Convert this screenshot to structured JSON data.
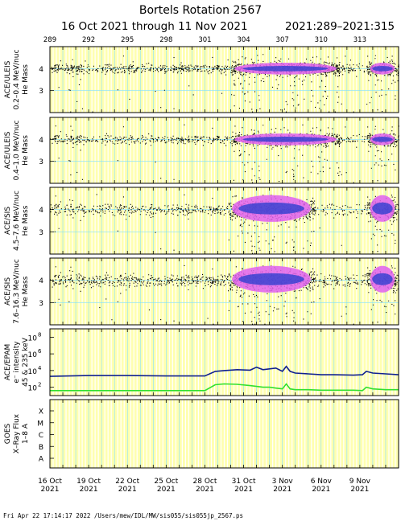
{
  "title": "Bortels Rotation 2567",
  "subtitle": "16 Oct 2021 through 11 Nov 2021",
  "doy_range": "2021:289–2021:315",
  "footer": "Fri Apr 22 17:14:17 2022   /Users/mew/IDL/MW/sis055/sis055jp_2567.ps",
  "colors": {
    "stripe_yellow": "#ffffb0",
    "grid_cyan": "#7fdfff",
    "frame": "#000000",
    "dense_magenta": "#e060f0",
    "dense_blue": "#3040d0",
    "epam_blue": "#102090",
    "epam_green": "#30e030"
  },
  "chart_data": {
    "type": "scatter",
    "x_start_doy": 289,
    "x_end_doy": 316,
    "top_ticks": [
      "289",
      "292",
      "295",
      "298",
      "301",
      "304",
      "307",
      "310",
      "313"
    ],
    "bottom_ticks": [
      {
        "day": "16 Oct",
        "year": "2021"
      },
      {
        "day": "19 Oct",
        "year": "2021"
      },
      {
        "day": "22 Oct",
        "year": "2021"
      },
      {
        "day": "25 Oct",
        "year": "2021"
      },
      {
        "day": "28 Oct",
        "year": "2021"
      },
      {
        "day": "31 Oct",
        "year": "2021"
      },
      {
        "day": "3 Nov",
        "year": "2021"
      },
      {
        "day": "6 Nov",
        "year": "2021"
      },
      {
        "day": "9 Nov",
        "year": "2021"
      }
    ],
    "panels": [
      {
        "instrument": "ACE/ULEIS",
        "energy": "0.2–0.4 MeV/nuc",
        "quantity": "He Mass",
        "yticks": [
          "4",
          "3"
        ],
        "ylim": [
          2,
          5
        ],
        "activity": [
          [
            289,
            290.5,
            0.3
          ],
          [
            290.5,
            291.5,
            0.55
          ],
          [
            291.5,
            303,
            0.3
          ],
          [
            303,
            311.5,
            1.0
          ],
          [
            311.5,
            312.5,
            0.35
          ],
          [
            312.5,
            313.5,
            0.2
          ],
          [
            313.5,
            316,
            0.9
          ]
        ]
      },
      {
        "instrument": "ACE/ULEIS",
        "energy": "0.4–1.0 MeV/nuc",
        "quantity": "He Mass",
        "yticks": [
          "4",
          "3"
        ],
        "ylim": [
          2,
          5
        ],
        "activity": [
          [
            289,
            290.5,
            0.3
          ],
          [
            290.5,
            291.5,
            0.55
          ],
          [
            291.5,
            303,
            0.3
          ],
          [
            303,
            311.5,
            1.0
          ],
          [
            311.5,
            312.5,
            0.35
          ],
          [
            312.5,
            313.5,
            0.2
          ],
          [
            313.5,
            316,
            0.9
          ]
        ]
      },
      {
        "instrument": "ACE/SIS",
        "energy": "4.5–7.6 MeV/nuc",
        "quantity": "He Mass",
        "yticks": [
          "4",
          "3"
        ],
        "ylim": [
          2,
          5
        ],
        "activity": [
          [
            289,
            302.8,
            0.3
          ],
          [
            302.8,
            309.5,
            1.0
          ],
          [
            309.5,
            313.5,
            0.2
          ],
          [
            313.5,
            316,
            0.9
          ]
        ]
      },
      {
        "instrument": "ACE/SIS",
        "energy": "7.6–16.3 MeV/nuc",
        "quantity": "He Mass",
        "yticks": [
          "4",
          "3"
        ],
        "ylim": [
          2,
          5
        ],
        "activity": [
          [
            289,
            302.8,
            0.4
          ],
          [
            302.8,
            309.5,
            1.0
          ],
          [
            309.5,
            313.5,
            0.3
          ],
          [
            313.5,
            316,
            0.9
          ]
        ]
      }
    ],
    "epam": {
      "instrument": "ACE/EPAM",
      "ylabel_1": "e⁻ intensity",
      "ylabel_2": "45 & 235 keV",
      "yticks": [
        {
          "base": "10",
          "exp": "8"
        },
        {
          "base": "10",
          "exp": "6"
        },
        {
          "base": "10",
          "exp": "4"
        },
        {
          "base": "10",
          "exp": "2"
        }
      ],
      "log_ylim": [
        1,
        9
      ],
      "series": [
        {
          "name": "45 keV",
          "x": [
            289,
            292,
            295,
            298,
            301,
            301.8,
            302.5,
            303.5,
            304.5,
            305,
            305.5,
            306,
            306.5,
            307,
            307.3,
            307.6,
            308,
            309,
            310,
            311,
            312.5,
            313.2,
            313.5,
            314,
            315,
            316
          ],
          "y": [
            3.3,
            3.4,
            3.4,
            3.35,
            3.35,
            3.9,
            4.0,
            4.1,
            4.05,
            4.4,
            4.1,
            4.2,
            4.3,
            3.9,
            4.5,
            3.9,
            3.7,
            3.6,
            3.5,
            3.5,
            3.45,
            3.5,
            3.9,
            3.7,
            3.6,
            3.5
          ]
        },
        {
          "name": "235 keV",
          "x": [
            289,
            292,
            295,
            298,
            301,
            301.8,
            302.5,
            303.5,
            304.5,
            305,
            305.5,
            306,
            306.5,
            307,
            307.3,
            307.6,
            308,
            309,
            310,
            311,
            312.5,
            313.2,
            313.5,
            314,
            315,
            316
          ],
          "y": [
            1.6,
            1.6,
            1.6,
            1.6,
            1.6,
            2.3,
            2.4,
            2.35,
            2.2,
            2.1,
            2.0,
            2.0,
            1.9,
            1.8,
            2.4,
            1.8,
            1.7,
            1.7,
            1.65,
            1.65,
            1.65,
            1.6,
            2.0,
            1.8,
            1.7,
            1.7
          ]
        }
      ]
    },
    "goes": {
      "instrument": "GOES",
      "ylabel_1": "X–Ray Flux",
      "ylabel_2": "1–8 A",
      "yticks": [
        "X",
        "M",
        "C",
        "B",
        "A"
      ]
    }
  }
}
